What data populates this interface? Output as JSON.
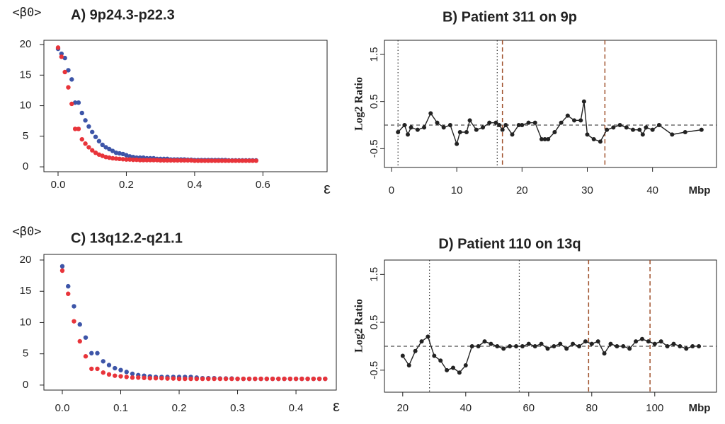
{
  "chart_data": [
    {
      "type": "scatter",
      "title": "A) 9p24.3-p22.3",
      "ylabel": "<β0>",
      "xlabel": "ε",
      "x": [
        0,
        0.01,
        0.02,
        0.03,
        0.04,
        0.05,
        0.06,
        0.07,
        0.08,
        0.09,
        0.1,
        0.11,
        0.12,
        0.13,
        0.14,
        0.15,
        0.16,
        0.17,
        0.18,
        0.19,
        0.2,
        0.21,
        0.22,
        0.23,
        0.24,
        0.25,
        0.26,
        0.27,
        0.28,
        0.29,
        0.3,
        0.31,
        0.32,
        0.33,
        0.34,
        0.35,
        0.36,
        0.37,
        0.38,
        0.39,
        0.4,
        0.41,
        0.42,
        0.43,
        0.44,
        0.45,
        0.46,
        0.47,
        0.48,
        0.49,
        0.5,
        0.51,
        0.52,
        0.53,
        0.54,
        0.55,
        0.56,
        0.57,
        0.58
      ],
      "series": [
        {
          "color": "#3d55a8",
          "values": [
            19.3,
            18.5,
            17.8,
            15.8,
            14.3,
            10.5,
            10.5,
            8.8,
            7.6,
            6.6,
            5.7,
            4.9,
            4.2,
            3.6,
            3.2,
            2.9,
            2.6,
            2.3,
            2.2,
            2.1,
            1.9,
            1.7,
            1.6,
            1.5,
            1.5,
            1.5,
            1.4,
            1.4,
            1.4,
            1.3,
            1.3,
            1.3,
            1.3,
            1.2,
            1.2,
            1.2,
            1.2,
            1.2,
            1.15,
            1.15,
            1.1,
            1.1,
            1.1,
            1.1,
            1.1,
            1.1,
            1.1,
            1.1,
            1.1,
            1.1,
            1.05,
            1.05,
            1.05,
            1.05,
            1.05,
            1.05,
            1.05,
            1.05,
            1.05
          ]
        },
        {
          "color": "#e8343a",
          "values": [
            19.5,
            18,
            15.5,
            13,
            10.3,
            6.2,
            6.2,
            4.5,
            3.8,
            3.2,
            2.7,
            2.3,
            2.0,
            1.8,
            1.6,
            1.5,
            1.4,
            1.35,
            1.3,
            1.25,
            1.2,
            1.2,
            1.15,
            1.15,
            1.1,
            1.1,
            1.1,
            1.1,
            1.1,
            1.1,
            1.05,
            1.05,
            1.05,
            1.05,
            1.05,
            1.05,
            1.05,
            1.05,
            1.05,
            1.05,
            1.0,
            1.0,
            1.0,
            1.0,
            1.0,
            1.0,
            1.0,
            1.0,
            1.0,
            1.0,
            1.0,
            1.0,
            1.0,
            1.0,
            1.0,
            1.0,
            1.0,
            1.0,
            1.0
          ]
        }
      ],
      "xlim": [
        -0.0415,
        0.788
      ],
      "ylim": [
        -0.8,
        20.7
      ],
      "xticks": [
        {
          "value": 0,
          "label": "0.0"
        },
        0.2,
        0.4,
        0.6
      ],
      "yticks": [
        0,
        5,
        10,
        15,
        20
      ]
    },
    {
      "type": "line",
      "title": "B) Patient 311 on 9p",
      "ylabel": "Log2 Ratio",
      "xlabel": "Mbp",
      "color": "#222222",
      "x": [
        1,
        2,
        2.5,
        3,
        4,
        5,
        6,
        7,
        8,
        9,
        10,
        10.5,
        11.5,
        12,
        13,
        14,
        15,
        16,
        16.5,
        17,
        17.5,
        18.5,
        19.5,
        20,
        21,
        22,
        23,
        23.5,
        24,
        25,
        26,
        27,
        28,
        29,
        29.5,
        30,
        31,
        32,
        33,
        34,
        35,
        36,
        37,
        38,
        38.5,
        39,
        40,
        41,
        43,
        45,
        47.5
      ],
      "values": [
        -0.15,
        0,
        -0.2,
        -0.05,
        -0.1,
        -0.05,
        0.25,
        0.05,
        -0.05,
        0,
        -0.4,
        -0.15,
        -0.15,
        0.1,
        -0.1,
        -0.05,
        0.05,
        0.05,
        0,
        -0.1,
        0,
        -0.2,
        0,
        0,
        0.05,
        0.05,
        -0.3,
        -0.3,
        -0.3,
        -0.15,
        0.05,
        0.2,
        0.1,
        0.1,
        0.5,
        -0.2,
        -0.3,
        -0.35,
        -0.1,
        -0.05,
        0,
        -0.05,
        -0.1,
        -0.1,
        -0.2,
        -0.05,
        -0.1,
        0,
        -0.2,
        -0.15,
        -0.1
      ],
      "hline": 0,
      "vlines": [
        {
          "value": 1,
          "style": "dotted",
          "color": "#333333"
        },
        {
          "value": 16.2,
          "style": "dotted",
          "color": "#333333"
        },
        {
          "value": 17,
          "style": "dashed",
          "color": "#a0522d"
        },
        {
          "value": 32.7,
          "style": "dashed",
          "color": "#a0522d"
        }
      ],
      "xlim": [
        -1.08,
        49.8
      ],
      "ylim": [
        -0.9,
        1.8
      ],
      "xticks": [
        0,
        10,
        20,
        30,
        40
      ],
      "yticks": [
        -0.5,
        0.5,
        1.5
      ]
    },
    {
      "type": "scatter",
      "title": "C) 13q12.2-q21.1",
      "ylabel": "<β0>",
      "xlabel": "ε",
      "x": [
        0,
        0.01,
        0.02,
        0.03,
        0.04,
        0.05,
        0.06,
        0.07,
        0.08,
        0.09,
        0.1,
        0.11,
        0.12,
        0.13,
        0.14,
        0.15,
        0.16,
        0.17,
        0.18,
        0.19,
        0.2,
        0.21,
        0.22,
        0.23,
        0.24,
        0.25,
        0.26,
        0.27,
        0.28,
        0.29,
        0.3,
        0.31,
        0.32,
        0.33,
        0.34,
        0.35,
        0.36,
        0.37,
        0.38,
        0.39,
        0.4,
        0.41,
        0.42,
        0.43,
        0.44,
        0.45
      ],
      "series": [
        {
          "color": "#3d55a8",
          "values": [
            19,
            15.8,
            12.6,
            9.7,
            7.6,
            5.1,
            5.1,
            3.8,
            3.2,
            2.7,
            2.4,
            2.1,
            1.8,
            1.6,
            1.5,
            1.4,
            1.3,
            1.3,
            1.3,
            1.3,
            1.3,
            1.3,
            1.3,
            1.2,
            1.1,
            1.1,
            1.1,
            1.05,
            1.05,
            1.05,
            1.0,
            1.0,
            1.0,
            1.0,
            1.0,
            1.0,
            1.0,
            1.0,
            1.0,
            1.0,
            1.0,
            1.0,
            1.0,
            1.0,
            1.0,
            1.0
          ]
        },
        {
          "color": "#e8343a",
          "values": [
            18.3,
            14.6,
            10.2,
            7,
            4.6,
            2.6,
            2.6,
            2.0,
            1.7,
            1.5,
            1.4,
            1.3,
            1.2,
            1.2,
            1.15,
            1.1,
            1.1,
            1.1,
            1.05,
            1.05,
            1.0,
            1.0,
            1.0,
            1.0,
            1.0,
            1.0,
            1.0,
            1.0,
            1.0,
            1.0,
            1.0,
            1.0,
            1.0,
            1.0,
            1.0,
            1.0,
            1.0,
            1.0,
            1.0,
            1.0,
            1.0,
            1.0,
            1.0,
            1.0,
            1.0,
            1.0
          ]
        }
      ],
      "xlim": [
        -0.0315,
        0.469
      ],
      "ylim": [
        -0.8,
        20.9
      ],
      "xticks": [
        {
          "value": 0,
          "label": "0.0"
        },
        0.1,
        0.2,
        0.3,
        0.4
      ],
      "yticks": [
        0,
        5,
        10,
        15,
        20
      ]
    },
    {
      "type": "line",
      "title": "D) Patient 110 on 13q",
      "ylabel": "Log2 Ratio",
      "xlabel": "Mbp",
      "color": "#222222",
      "x": [
        20,
        22,
        24,
        26,
        28,
        30,
        32,
        34,
        36,
        38,
        40,
        42,
        44,
        46,
        48,
        50,
        52,
        54,
        56,
        58,
        60,
        62,
        64,
        66,
        68,
        70,
        72,
        74,
        76,
        78,
        80,
        82,
        84,
        86,
        88,
        90,
        92,
        94,
        96,
        98,
        100,
        102,
        104,
        106,
        108,
        110,
        112,
        114
      ],
      "values": [
        -0.2,
        -0.4,
        -0.1,
        0.1,
        0.2,
        -0.2,
        -0.3,
        -0.5,
        -0.45,
        -0.55,
        -0.4,
        0,
        0,
        0.1,
        0.05,
        0,
        -0.05,
        0,
        0,
        0,
        0.05,
        0,
        0.05,
        -0.05,
        0,
        0.05,
        -0.05,
        0.05,
        0,
        0.1,
        0.05,
        0.1,
        -0.15,
        0.05,
        0,
        0,
        -0.05,
        0.1,
        0.15,
        0.1,
        0.05,
        0.1,
        0,
        0.05,
        0,
        -0.05,
        0,
        0
      ],
      "hline": 0,
      "vlines": [
        {
          "value": 28.5,
          "style": "dotted",
          "color": "#333333"
        },
        {
          "value": 57,
          "style": "dotted",
          "color": "#333333"
        },
        {
          "value": 79,
          "style": "dashed",
          "color": "#a0522d"
        },
        {
          "value": 98.5,
          "style": "dashed",
          "color": "#a0522d"
        }
      ],
      "xlim": [
        14.2,
        119.6
      ],
      "ylim": [
        -0.96,
        1.8
      ],
      "xticks": [
        20,
        40,
        60,
        80,
        100
      ],
      "yticks": [
        -0.5,
        0.5,
        1.5
      ]
    }
  ]
}
